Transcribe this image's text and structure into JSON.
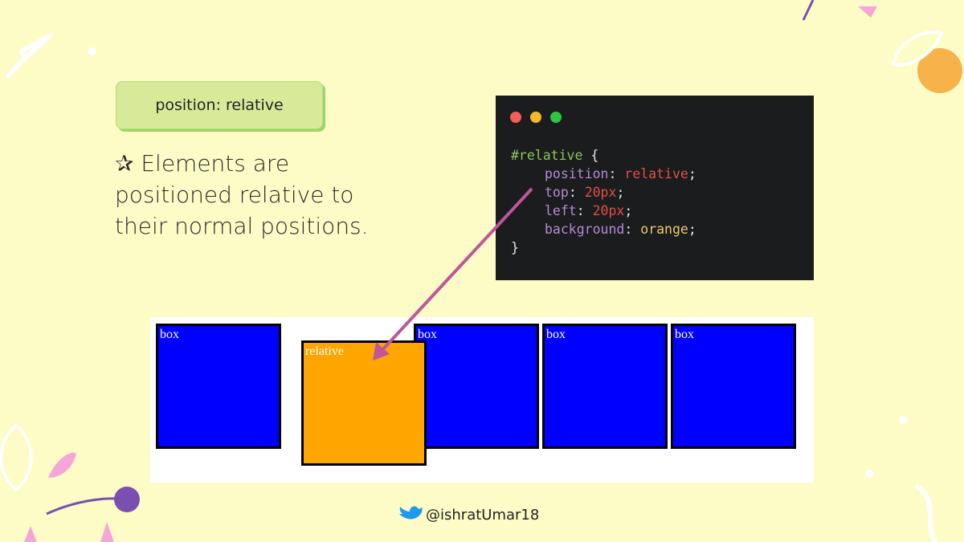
{
  "badge": "position: relative",
  "description": "✰ Elements are positioned relative to their normal positions.",
  "code": {
    "lines": [
      [
        {
          "text": "#relative",
          "color": "#8fc45a"
        },
        {
          "text": " {",
          "color": "#e6e6e6"
        }
      ],
      [
        {
          "text": "position",
          "color": "#b58ad8"
        },
        {
          "text": ": ",
          "color": "#e6e6e6"
        },
        {
          "text": "relative",
          "color": "#e0504a"
        },
        {
          "text": ";",
          "color": "#e6e6e6"
        }
      ],
      [
        {
          "text": "top",
          "color": "#b58ad8"
        },
        {
          "text": ": ",
          "color": "#e6e6e6"
        },
        {
          "text": "20px",
          "color": "#e0504a"
        },
        {
          "text": ";",
          "color": "#e6e6e6"
        }
      ],
      [
        {
          "text": "left",
          "color": "#b58ad8"
        },
        {
          "text": ": ",
          "color": "#e6e6e6"
        },
        {
          "text": "20px",
          "color": "#e0504a"
        },
        {
          "text": ";",
          "color": "#e6e6e6"
        }
      ],
      [
        {
          "text": "background",
          "color": "#b58ad8"
        },
        {
          "text": ": ",
          "color": "#e6e6e6"
        },
        {
          "text": "orange",
          "color": "#f2c96b"
        },
        {
          "text": ";",
          "color": "#e6e6e6"
        }
      ],
      [
        {
          "text": "}",
          "color": "#e6e6e6"
        }
      ]
    ]
  },
  "demo": {
    "boxes": [
      {
        "label": "box",
        "color": "#0000ff"
      },
      {
        "label": "relative",
        "color": "#ffa500"
      },
      {
        "label": "box",
        "color": "#0000ff"
      },
      {
        "label": "box",
        "color": "#0000ff"
      },
      {
        "label": "box",
        "color": "#0000ff"
      }
    ]
  },
  "footer": {
    "handle": "@ishratUmar18"
  }
}
